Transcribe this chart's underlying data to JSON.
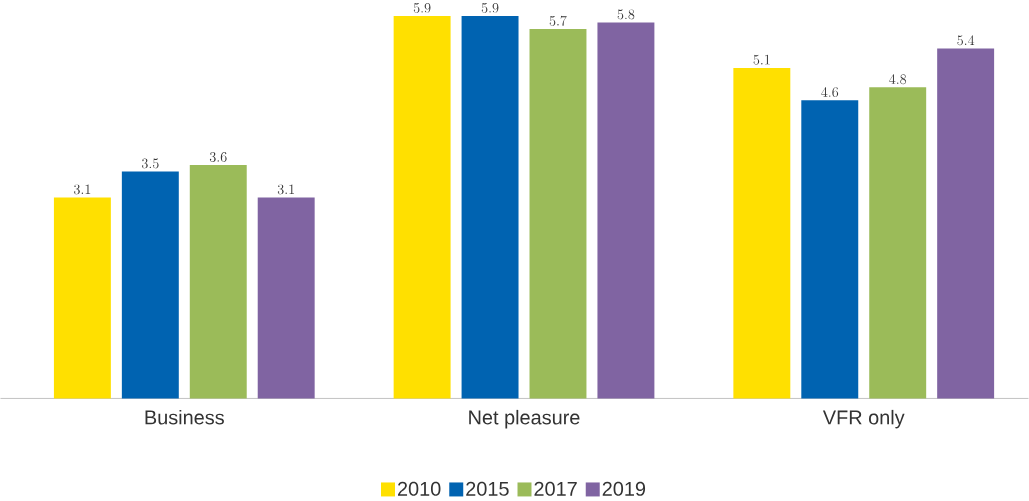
{
  "chart_data": {
    "type": "bar",
    "categories": [
      "Business",
      "Net pleasure",
      "VFR only"
    ],
    "series": [
      {
        "name": "2010",
        "color": "#ffe000",
        "values": [
          3.1,
          5.9,
          5.1
        ]
      },
      {
        "name": "2015",
        "color": "#0063b1",
        "values": [
          3.5,
          5.9,
          4.6
        ]
      },
      {
        "name": "2017",
        "color": "#9bbb59",
        "values": [
          3.6,
          5.7,
          4.8
        ]
      },
      {
        "name": "2019",
        "color": "#8064a2",
        "values": [
          3.1,
          5.8,
          5.4
        ]
      }
    ],
    "data_labels": true,
    "legend": "bottom"
  }
}
